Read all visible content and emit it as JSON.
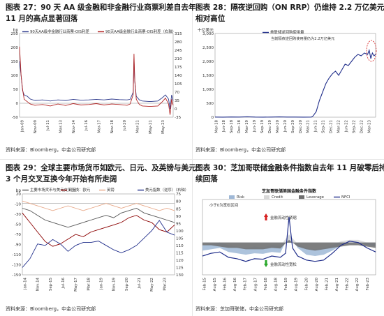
{
  "chart_data": [
    {
      "id": "c27",
      "type": "line",
      "title_lines": [
        "图表 27：90 天 AA 级金融和非金融行业商票利差自去年",
        "11 月的高点显著回落"
      ],
      "source": "资料来源：Bloomberg，中金公司研究部",
      "ylabel_left": "bp",
      "ylim_left": [
        -50,
        250
      ],
      "yticks_left": [
        "250",
        "200",
        "150",
        "100",
        "50",
        "0",
        "-50"
      ],
      "ylim_right": [
        -35,
        315
      ],
      "yticks_right": [
        "315",
        "280",
        "245",
        "210",
        "175",
        "140",
        "105",
        "70",
        "35",
        "0",
        "-35"
      ],
      "x_ticks": [
        "Jan-09",
        "Nov-09",
        "Jul-11",
        "Mar-13",
        "Nov-14",
        "Jul-16",
        "Mar-17",
        "Nov-18",
        "Jul-20",
        "Mar-21",
        "May-21",
        "May-23"
      ],
      "legend": [
        "90天AA级非金融行业商票-OIS利差",
        "90天AA级金融行业商票-OIS利差（右轴）"
      ],
      "series": [
        {
          "name": "90天AA级非金融行业商票-OIS利差",
          "color": "#2e3a8c",
          "axis": "left",
          "x": [
            0,
            0.01,
            0.02,
            0.03,
            0.05,
            0.07,
            0.1,
            0.15,
            0.2,
            0.25,
            0.3,
            0.35,
            0.4,
            0.45,
            0.5,
            0.55,
            0.6,
            0.65,
            0.7,
            0.72,
            0.74,
            0.745,
            0.75,
            0.76,
            0.78,
            0.8,
            0.85,
            0.9,
            0.93,
            0.95,
            0.97,
            0.98,
            0.99,
            1.0
          ],
          "y": [
            150,
            100,
            45,
            30,
            25,
            15,
            10,
            12,
            8,
            12,
            10,
            14,
            11,
            12,
            14,
            12,
            15,
            13,
            12,
            14,
            40,
            160,
            80,
            25,
            12,
            8,
            6,
            8,
            20,
            30,
            15,
            -20,
            30,
            10
          ]
        },
        {
          "name": "90天AA级金融行业商票-OIS利差（右轴）",
          "color": "#b22222",
          "axis": "right",
          "x": [
            0,
            0.01,
            0.02,
            0.03,
            0.05,
            0.07,
            0.1,
            0.15,
            0.2,
            0.25,
            0.3,
            0.35,
            0.4,
            0.45,
            0.5,
            0.55,
            0.6,
            0.65,
            0.7,
            0.72,
            0.74,
            0.745,
            0.75,
            0.76,
            0.78,
            0.8,
            0.85,
            0.9,
            0.93,
            0.95,
            0.97,
            0.98,
            0.99,
            1.0
          ],
          "y": [
            260,
            140,
            80,
            40,
            30,
            20,
            15,
            18,
            12,
            20,
            14,
            22,
            16,
            18,
            22,
            16,
            20,
            18,
            15,
            20,
            60,
            230,
            120,
            40,
            18,
            12,
            10,
            12,
            30,
            45,
            20,
            -25,
            40,
            15
          ]
        }
      ]
    },
    {
      "id": "c28",
      "type": "line",
      "title_lines": [
        "图表 28：隔夜逆回购（ON RRP）仍维持 2.2 万亿美元的",
        "相对高位"
      ],
      "source": "资料来源：Bloomberg，中金公司研究部",
      "ylabel_left": "十亿美元",
      "ylim_left": [
        0,
        3000
      ],
      "yticks_left": [
        "3,000",
        "2,500",
        "2,000",
        "1,500",
        "1,000",
        "500",
        "0"
      ],
      "x_ticks": [
        "Mar-18",
        "Jun-18",
        "Sep-18",
        "Dec-18",
        "Mar-19",
        "Jun-19",
        "Sep-19",
        "Dec-19",
        "Mar-20",
        "Jun-20",
        "Sep-20",
        "Dec-20",
        "Mar-21",
        "Jun-21",
        "Sep-21",
        "Dec-21",
        "Mar-22",
        "Jun-22",
        "Sep-22",
        "Dec-22",
        "Mar-23"
      ],
      "legend": [
        "美联储逆回购使用量"
      ],
      "annotation": "当前隔夜逆回购使用量仍为2.2万亿美元",
      "series": [
        {
          "name": "美联储逆回购使用量",
          "color": "#1f2d8a",
          "axis": "left",
          "x": [
            0,
            0.05,
            0.1,
            0.15,
            0.2,
            0.25,
            0.3,
            0.35,
            0.4,
            0.45,
            0.5,
            0.55,
            0.6,
            0.61,
            0.63,
            0.65,
            0.67,
            0.69,
            0.71,
            0.73,
            0.75,
            0.77,
            0.79,
            0.81,
            0.83,
            0.85,
            0.87,
            0.89,
            0.91,
            0.93,
            0.95,
            0.96,
            0.97,
            0.98,
            0.99,
            1.0
          ],
          "y": [
            5,
            3,
            8,
            4,
            15,
            5,
            3,
            6,
            10,
            4,
            6,
            3,
            5,
            40,
            200,
            600,
            900,
            1200,
            1400,
            1550,
            1650,
            1500,
            1700,
            1900,
            1850,
            2000,
            2150,
            2250,
            2200,
            2300,
            2250,
            2400,
            2100,
            2300,
            2200,
            2250
          ]
        }
      ]
    },
    {
      "id": "c29",
      "type": "line",
      "title_lines": [
        "图表 29：全球主要市场货币如欧元、日元、及英镑与美元",
        "3 个月交叉互换今年开始有所走阔"
      ],
      "source": "资料来源：Bloomberg，中金公司研究部",
      "ylabel_left": "bp",
      "ylim_left": [
        -150,
        20
      ],
      "yticks_left": [
        "20",
        "-10",
        "-30",
        "-50",
        "-70",
        "-90",
        "-110",
        "-130",
        "-150"
      ],
      "ylim_right": [
        75,
        130
      ],
      "yticks_right": [
        "75",
        "80",
        "85",
        "90",
        "95",
        "100",
        "105",
        "110",
        "115",
        "120",
        "125",
        "130"
      ],
      "x_ticks": [
        "Jan-14",
        "Nov-14",
        "Sep-15",
        "Jul-16",
        "May-17",
        "Mar-18",
        "Jan-19",
        "Nov-19",
        "Sep-20",
        "Jul-21",
        "May-22",
        "Mar-23"
      ],
      "legend": [
        "主要市场货币与美元交叉互换：欧元",
        "日元",
        "英镑",
        "美元指数（逆序）（右轴）"
      ],
      "series": [
        {
          "name": "主要市场货币与美元交叉互换：欧元",
          "color": "#555555",
          "axis": "left",
          "x": [
            0,
            0.05,
            0.1,
            0.15,
            0.2,
            0.25,
            0.3,
            0.35,
            0.4,
            0.45,
            0.5,
            0.55,
            0.6,
            0.65,
            0.7,
            0.75,
            0.8,
            0.85,
            0.9,
            0.95,
            1.0
          ],
          "y": [
            -10,
            -15,
            -25,
            -35,
            -40,
            -45,
            -50,
            -45,
            -40,
            -35,
            -30,
            -25,
            -30,
            -20,
            -15,
            -10,
            -20,
            -25,
            -30,
            -35,
            -40
          ]
        },
        {
          "name": "日元",
          "color": "#8b0000",
          "axis": "left",
          "x": [
            0,
            0.05,
            0.1,
            0.15,
            0.2,
            0.25,
            0.3,
            0.35,
            0.4,
            0.45,
            0.5,
            0.55,
            0.6,
            0.65,
            0.7,
            0.75,
            0.8,
            0.85,
            0.9,
            0.95,
            1.0
          ],
          "y": [
            -20,
            -40,
            -60,
            -80,
            -90,
            -85,
            -75,
            -65,
            -70,
            -60,
            -55,
            -50,
            -45,
            -40,
            -30,
            -25,
            -35,
            -40,
            -55,
            -60,
            -45
          ]
        },
        {
          "name": "英镑",
          "color": "#e8a888",
          "axis": "left",
          "x": [
            0,
            0.05,
            0.1,
            0.15,
            0.2,
            0.25,
            0.3,
            0.35,
            0.4,
            0.45,
            0.5,
            0.55,
            0.6,
            0.65,
            0.7,
            0.75,
            0.8,
            0.85,
            0.9,
            0.95,
            1.0
          ],
          "y": [
            5,
            0,
            -5,
            -10,
            -15,
            -10,
            -5,
            -10,
            -15,
            -10,
            -5,
            0,
            -5,
            -10,
            -5,
            0,
            -5,
            -10,
            -15,
            -10,
            -15
          ]
        },
        {
          "name": "美元指数（逆序）（右轴）",
          "color": "#1f2d8a",
          "axis": "right",
          "x": [
            0,
            0.05,
            0.1,
            0.15,
            0.2,
            0.25,
            0.3,
            0.35,
            0.4,
            0.45,
            0.5,
            0.55,
            0.6,
            0.65,
            0.7,
            0.75,
            0.8,
            0.85,
            0.9,
            0.95,
            1.0
          ],
          "y": [
            80,
            86,
            96,
            95,
            99,
            96,
            91,
            95,
            97,
            97,
            98,
            95,
            92,
            90,
            92,
            95,
            100,
            105,
            112,
            104,
            102
          ]
        }
      ]
    },
    {
      "id": "c30",
      "type": "area",
      "title_lines": [
        "图表 30：芝加哥联储金融条件指数自去年 11 月破零后持",
        "续回落"
      ],
      "source": "资料来源：芝加哥联储，中金公司研究部",
      "inner_title": "芝加哥联储美国金融条件指数",
      "ylim_left": [
        -1.2,
        1.6
      ],
      "x_ticks": [
        "Feb-15",
        "Aug-15",
        "Feb-16",
        "Aug-16",
        "Feb-17",
        "Aug-17",
        "Feb-18",
        "Aug-18",
        "Feb-19",
        "Aug-19",
        "Feb-20",
        "Aug-20",
        "Feb-21",
        "Aug-21",
        "Feb-22",
        "Aug-22",
        "Feb-23"
      ],
      "legend": [
        "Risk",
        "Credit",
        "Leverage",
        "NFCI"
      ],
      "annotations": [
        "小于0为宽松区间",
        "金融流动性紧缩",
        "金融流动性宽松"
      ],
      "series": [
        {
          "name": "Risk",
          "color": "#9fb8d6",
          "axis": "left",
          "x": [
            0,
            0.05,
            0.1,
            0.15,
            0.2,
            0.25,
            0.3,
            0.35,
            0.4,
            0.45,
            0.5,
            0.55,
            0.6,
            0.65,
            0.7,
            0.75,
            0.8,
            0.85,
            0.9,
            0.95,
            1.0
          ],
          "y": [
            -0.3,
            -0.25,
            -0.2,
            -0.35,
            -0.4,
            -0.45,
            -0.4,
            -0.42,
            -0.35,
            -0.38,
            0.3,
            -0.2,
            -0.45,
            -0.5,
            -0.45,
            -0.3,
            -0.1,
            -0.05,
            0.0,
            -0.1,
            -0.15
          ]
        },
        {
          "name": "Credit",
          "color": "#d8d8d8",
          "axis": "left",
          "x": [
            0,
            0.05,
            0.1,
            0.15,
            0.2,
            0.25,
            0.3,
            0.35,
            0.4,
            0.45,
            0.5,
            0.55,
            0.6,
            0.65,
            0.7,
            0.75,
            0.8,
            0.85,
            0.9,
            0.95,
            1.0
          ],
          "y": [
            -0.1,
            -0.05,
            0.0,
            -0.1,
            -0.15,
            -0.2,
            -0.15,
            -0.18,
            -0.1,
            -0.12,
            0.3,
            -0.05,
            -0.2,
            -0.25,
            -0.2,
            -0.1,
            0.05,
            0.1,
            0.1,
            0.0,
            -0.05
          ]
        },
        {
          "name": "Leverage",
          "color": "#6e6e6e",
          "axis": "left",
          "x": [
            0,
            0.05,
            0.1,
            0.15,
            0.2,
            0.25,
            0.3,
            0.35,
            0.4,
            0.45,
            0.5,
            0.55,
            0.6,
            0.65,
            0.7,
            0.75,
            0.8,
            0.85,
            0.9,
            0.95,
            1.0
          ],
          "y": [
            -0.1,
            -0.1,
            -0.15,
            -0.2,
            -0.2,
            -0.25,
            -0.25,
            -0.25,
            -0.2,
            -0.22,
            0.1,
            -0.15,
            -0.25,
            -0.3,
            -0.25,
            -0.2,
            -0.15,
            -0.1,
            -0.1,
            -0.15,
            -0.2
          ]
        },
        {
          "name": "NFCI",
          "color": "#1f2d8a",
          "axis": "left",
          "x": [
            0,
            0.05,
            0.1,
            0.15,
            0.2,
            0.25,
            0.3,
            0.35,
            0.4,
            0.45,
            0.48,
            0.5,
            0.52,
            0.55,
            0.6,
            0.65,
            0.7,
            0.75,
            0.8,
            0.85,
            0.9,
            0.95,
            1.0
          ],
          "y": [
            -0.5,
            -0.4,
            -0.35,
            -0.55,
            -0.6,
            -0.7,
            -0.6,
            -0.62,
            -0.5,
            -0.55,
            -0.4,
            0.95,
            -0.2,
            -0.5,
            -0.65,
            -0.7,
            -0.65,
            -0.4,
            -0.1,
            0.05,
            0.0,
            -0.2,
            -0.35
          ]
        }
      ]
    }
  ]
}
